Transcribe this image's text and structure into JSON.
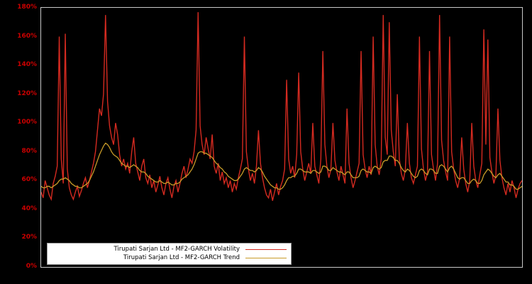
{
  "chart_data": {
    "type": "line",
    "title": "",
    "xlabel": "",
    "ylabel": "",
    "ylim": [
      0,
      180
    ],
    "grid": false,
    "legend_position": "lower-left",
    "colors": {
      "volatility": "#d42a20",
      "trend": "#c89b28",
      "tick_label": "#cc0000",
      "plot_background": "#000000",
      "frame": "#c8c8c8",
      "legend_background": "#ffffff"
    },
    "y_ticks": [
      {
        "value": 0,
        "label": "0%"
      },
      {
        "value": 20,
        "label": "20%"
      },
      {
        "value": 40,
        "label": "40%"
      },
      {
        "value": 60,
        "label": "60%"
      },
      {
        "value": 80,
        "label": "80%"
      },
      {
        "value": 100,
        "label": "100%"
      },
      {
        "value": 120,
        "label": "120%"
      },
      {
        "value": 140,
        "label": "140%"
      },
      {
        "value": 160,
        "label": "160%"
      },
      {
        "value": 180,
        "label": "180%"
      }
    ],
    "series": [
      {
        "name": "Tirupati Sarjan Ltd - MF2-GARCH Volatility",
        "color_key": "volatility",
        "values": [
          52,
          48,
          60,
          55,
          50,
          47,
          58,
          63,
          70,
          160,
          75,
          58,
          162,
          68,
          55,
          50,
          47,
          52,
          56,
          49,
          53,
          58,
          62,
          55,
          60,
          66,
          72,
          80,
          95,
          110,
          105,
          120,
          175,
          115,
          98,
          90,
          85,
          100,
          92,
          78,
          70,
          75,
          68,
          72,
          65,
          80,
          90,
          72,
          66,
          60,
          70,
          75,
          62,
          58,
          64,
          55,
          60,
          52,
          57,
          63,
          55,
          50,
          58,
          62,
          54,
          48,
          56,
          60,
          52,
          58,
          65,
          70,
          62,
          68,
          75,
          72,
          80,
          95,
          177,
          98,
          85,
          78,
          90,
          82,
          75,
          92,
          70,
          65,
          72,
          60,
          66,
          58,
          62,
          55,
          60,
          52,
          58,
          54,
          62,
          68,
          75,
          160,
          80,
          68,
          60,
          65,
          58,
          70,
          95,
          72,
          62,
          55,
          50,
          48,
          54,
          46,
          52,
          58,
          50,
          56,
          60,
          68,
          130,
          75,
          65,
          70,
          62,
          78,
          135,
          80,
          68,
          60,
          66,
          72,
          65,
          100,
          70,
          64,
          58,
          75,
          150,
          85,
          70,
          62,
          68,
          100,
          74,
          66,
          60,
          70,
          64,
          58,
          110,
          72,
          62,
          55,
          60,
          66,
          72,
          150,
          78,
          68,
          62,
          70,
          64,
          160,
          85,
          70,
          64,
          75,
          175,
          90,
          78,
          170,
          95,
          80,
          70,
          120,
          75,
          65,
          60,
          68,
          100,
          72,
          62,
          58,
          64,
          70,
          160,
          82,
          68,
          60,
          66,
          150,
          78,
          68,
          60,
          72,
          175,
          88,
          74,
          66,
          60,
          160,
          80,
          68,
          60,
          55,
          62,
          90,
          68,
          58,
          52,
          60,
          100,
          70,
          60,
          55,
          64,
          72,
          165,
          85,
          158,
          76,
          66,
          58,
          64,
          110,
          74,
          62,
          55,
          50,
          58,
          52,
          60,
          55,
          48,
          54,
          58,
          60
        ]
      },
      {
        "name": "Tirupati Sarjan Ltd - MF2-GARCH Trend",
        "color_key": "trend",
        "values": [
          56,
          55,
          55,
          56,
          56,
          55,
          56,
          57,
          58,
          60,
          61,
          61,
          62,
          61,
          60,
          58,
          57,
          56,
          56,
          55,
          55,
          56,
          57,
          58,
          60,
          63,
          66,
          70,
          74,
          78,
          81,
          84,
          86,
          85,
          83,
          80,
          78,
          77,
          76,
          74,
          72,
          71,
          70,
          70,
          69,
          70,
          71,
          70,
          69,
          67,
          66,
          66,
          65,
          63,
          62,
          61,
          60,
          59,
          59,
          60,
          59,
          58,
          58,
          59,
          58,
          57,
          57,
          58,
          58,
          59,
          61,
          62,
          63,
          64,
          66,
          68,
          71,
          75,
          79,
          80,
          80,
          79,
          79,
          78,
          77,
          76,
          74,
          72,
          71,
          69,
          68,
          66,
          65,
          63,
          62,
          61,
          60,
          60,
          61,
          63,
          65,
          68,
          69,
          68,
          67,
          67,
          66,
          67,
          69,
          68,
          66,
          63,
          61,
          59,
          57,
          56,
          55,
          55,
          54,
          54,
          55,
          57,
          60,
          62,
          62,
          63,
          63,
          65,
          68,
          68,
          67,
          66,
          66,
          66,
          65,
          67,
          67,
          66,
          65,
          66,
          70,
          70,
          69,
          67,
          67,
          69,
          68,
          67,
          66,
          66,
          65,
          64,
          66,
          66,
          64,
          62,
          62,
          62,
          63,
          67,
          68,
          67,
          66,
          66,
          65,
          69,
          70,
          69,
          68,
          69,
          73,
          74,
          74,
          77,
          77,
          76,
          74,
          74,
          72,
          69,
          67,
          66,
          68,
          67,
          65,
          63,
          62,
          63,
          67,
          68,
          67,
          65,
          64,
          68,
          68,
          67,
          65,
          65,
          70,
          71,
          70,
          68,
          66,
          69,
          70,
          68,
          65,
          62,
          61,
          62,
          62,
          60,
          58,
          58,
          60,
          61,
          60,
          58,
          58,
          60,
          64,
          66,
          68,
          67,
          65,
          63,
          62,
          64,
          65,
          63,
          61,
          59,
          59,
          57,
          57,
          56,
          54,
          54,
          55,
          56
        ]
      }
    ]
  }
}
